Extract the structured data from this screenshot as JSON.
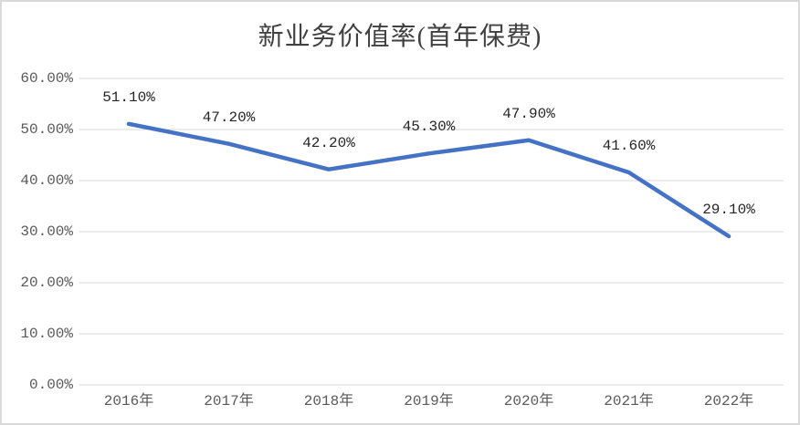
{
  "chart_data": {
    "type": "line",
    "title": "新业务价值率(首年保费)",
    "categories": [
      "2016年",
      "2017年",
      "2018年",
      "2019年",
      "2020年",
      "2021年",
      "2022年"
    ],
    "values": [
      51.1,
      47.2,
      42.2,
      45.3,
      47.9,
      41.6,
      29.1
    ],
    "data_labels": [
      "51.10%",
      "47.20%",
      "42.20%",
      "45.30%",
      "47.90%",
      "41.60%",
      "29.10%"
    ],
    "y_ticks": [
      {
        "value": 0,
        "label": "0.00%"
      },
      {
        "value": 10,
        "label": "10.00%"
      },
      {
        "value": 20,
        "label": "20.00%"
      },
      {
        "value": 30,
        "label": "30.00%"
      },
      {
        "value": 40,
        "label": "40.00%"
      },
      {
        "value": 50,
        "label": "50.00%"
      },
      {
        "value": 60,
        "label": "60.00%"
      }
    ],
    "ylim": [
      0,
      60
    ],
    "xlabel": "",
    "ylabel": "",
    "grid": true,
    "legend_position": "none",
    "colors": {
      "line": "#4472C4",
      "gridline": "#D9D9D9",
      "frame_border": "#D9D9D9",
      "axis_label": "#595959",
      "data_label": "#262626",
      "title": "#404040",
      "background": "#FFFFFF"
    }
  }
}
